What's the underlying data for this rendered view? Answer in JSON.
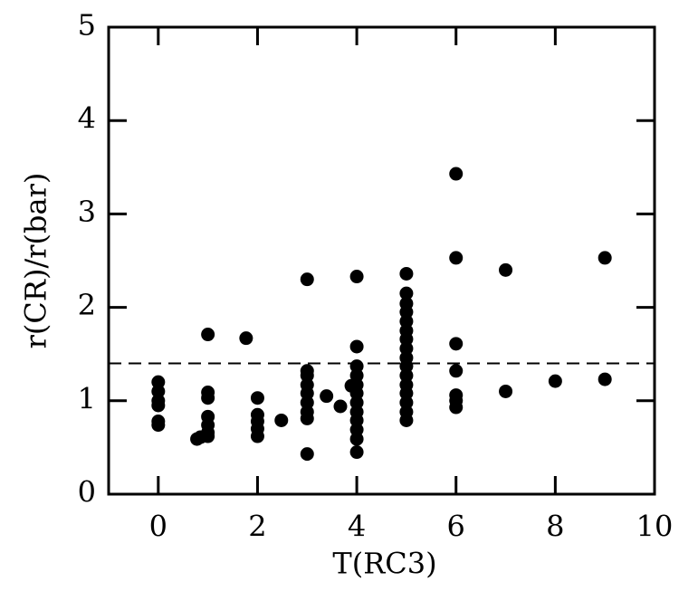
{
  "chart_data": {
    "type": "scatter",
    "xlabel": "T(RC3)",
    "ylabel": "r(CR)/r(bar)",
    "x": [
      0,
      0,
      0,
      0,
      0,
      0,
      0.78,
      0.85,
      1,
      1,
      1,
      1,
      1,
      1,
      1,
      1.77,
      2,
      2,
      2,
      2,
      2,
      2.48,
      3,
      3,
      3,
      3,
      3,
      3,
      3,
      3,
      3,
      3.39,
      3.67,
      3.89,
      4,
      4,
      4,
      4,
      4,
      4,
      4,
      4,
      4,
      4,
      4,
      4,
      5,
      5,
      5,
      5,
      5,
      5,
      5,
      5,
      5,
      5,
      5,
      5,
      5,
      5,
      5,
      5,
      6,
      6,
      6,
      6,
      6,
      6,
      6,
      7,
      7,
      8,
      9,
      9
    ],
    "values": [
      1.2,
      1.1,
      1.0,
      0.95,
      0.78,
      0.74,
      0.59,
      0.61,
      1.71,
      1.09,
      1.03,
      0.83,
      0.74,
      0.66,
      0.62,
      1.67,
      1.03,
      0.85,
      0.78,
      0.7,
      0.62,
      0.79,
      2.3,
      1.32,
      1.27,
      1.17,
      1.08,
      0.98,
      0.88,
      0.81,
      0.43,
      1.05,
      0.94,
      1.16,
      2.33,
      1.58,
      1.37,
      1.27,
      1.17,
      1.08,
      0.98,
      0.88,
      0.79,
      0.69,
      0.59,
      0.45,
      2.36,
      2.15,
      2.04,
      1.95,
      1.85,
      1.75,
      1.66,
      1.56,
      1.46,
      1.37,
      1.27,
      1.17,
      1.08,
      0.98,
      0.88,
      0.79,
      3.43,
      2.53,
      1.61,
      1.32,
      1.06,
      1.0,
      0.93,
      2.4,
      1.1,
      1.21,
      2.53,
      1.23
    ],
    "color": "#000000",
    "hline": 1.4,
    "xlim": [
      -1,
      10
    ],
    "xticks": [
      0,
      2,
      4,
      6,
      8,
      10
    ],
    "ylim": [
      0,
      5
    ],
    "yticks": [
      0,
      1,
      2,
      3,
      4,
      5
    ]
  }
}
